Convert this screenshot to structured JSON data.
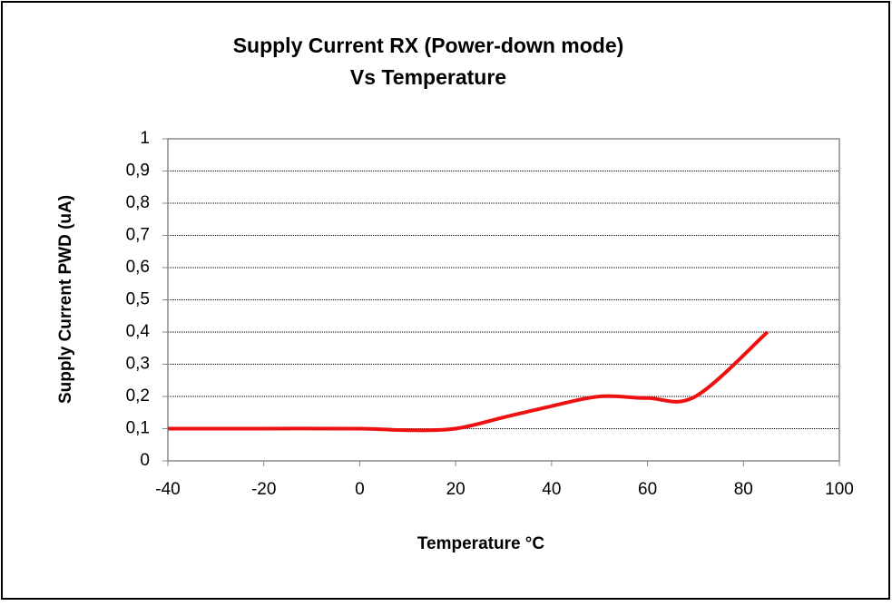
{
  "chart_data": {
    "type": "line",
    "title": [
      "Supply Current RX (Power-down mode)",
      "Vs Temperature"
    ],
    "x_label": "Temperature °C",
    "y_label": "Supply Current PWD (uA)",
    "x": [
      -40,
      -20,
      0,
      10,
      20,
      30,
      40,
      50,
      60,
      70,
      85
    ],
    "series": [
      {
        "name": "Supply Current",
        "color": "#ee1111",
        "values": [
          0.1,
          0.1,
          0.1,
          0.095,
          0.1,
          0.135,
          0.17,
          0.2,
          0.195,
          0.2,
          0.4
        ]
      }
    ],
    "xlim": [
      -40,
      100
    ],
    "xticks": [
      -40,
      -20,
      0,
      20,
      40,
      60,
      80,
      100
    ],
    "ylim": [
      0,
      1
    ],
    "yticks": [
      0,
      {
        "value": 0.1,
        "label": "0,1"
      },
      {
        "value": 0.2,
        "label": "0,2"
      },
      {
        "value": 0.3,
        "label": "0,3"
      },
      {
        "value": 0.4,
        "label": "0,4"
      },
      {
        "value": 0.5,
        "label": "0,5"
      },
      {
        "value": 0.6,
        "label": "0,6"
      },
      {
        "value": 0.7,
        "label": "0,7"
      },
      {
        "value": 0.8,
        "label": "0,8"
      },
      {
        "value": 0.9,
        "label": "0,9"
      },
      1
    ],
    "grid": true
  }
}
